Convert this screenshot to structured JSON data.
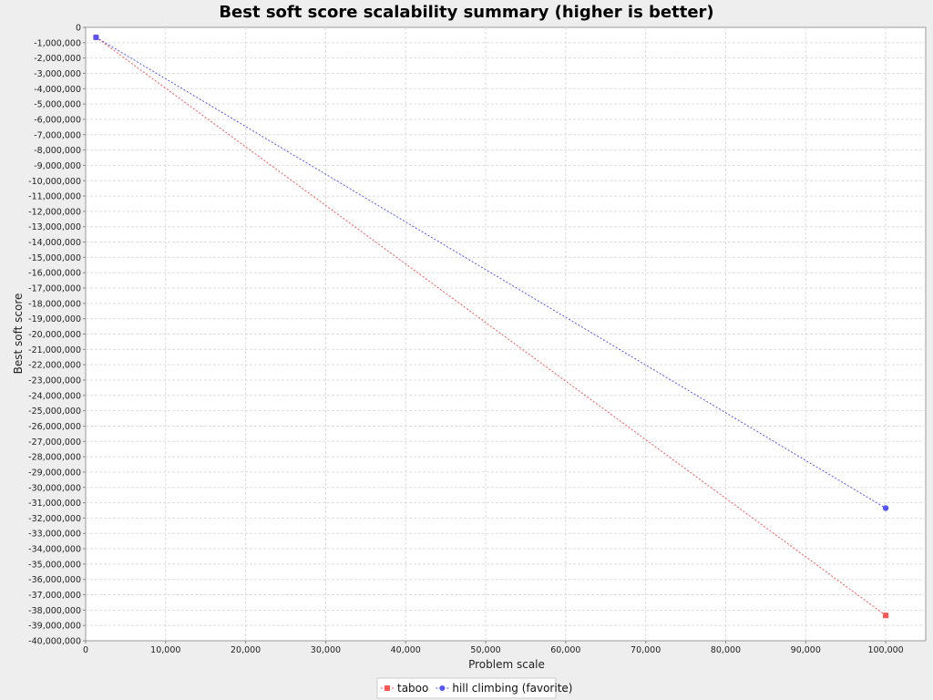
{
  "chart_data": {
    "type": "line",
    "title": "Best soft score scalability summary (higher is better)",
    "xlabel": "Problem scale",
    "ylabel": "Best soft score",
    "xlim": [
      0,
      105000
    ],
    "ylim": [
      -40000000,
      0
    ],
    "x_ticks": [
      0,
      10000,
      20000,
      30000,
      40000,
      50000,
      60000,
      70000,
      80000,
      90000,
      100000
    ],
    "y_tick_step": 1000000,
    "grid": true,
    "legend_position": "bottom-center",
    "series": [
      {
        "name": "taboo",
        "color": "#ff5555",
        "marker": "square",
        "line_style": "dashed",
        "points": [
          {
            "x": 1300,
            "y": -650000
          },
          {
            "x": 100000,
            "y": -38350000
          }
        ]
      },
      {
        "name": "hill climbing (favorite)",
        "color": "#5555ff",
        "marker": "circle",
        "line_style": "dashed",
        "points": [
          {
            "x": 1300,
            "y": -650000
          },
          {
            "x": 100000,
            "y": -31350000
          }
        ]
      }
    ]
  }
}
